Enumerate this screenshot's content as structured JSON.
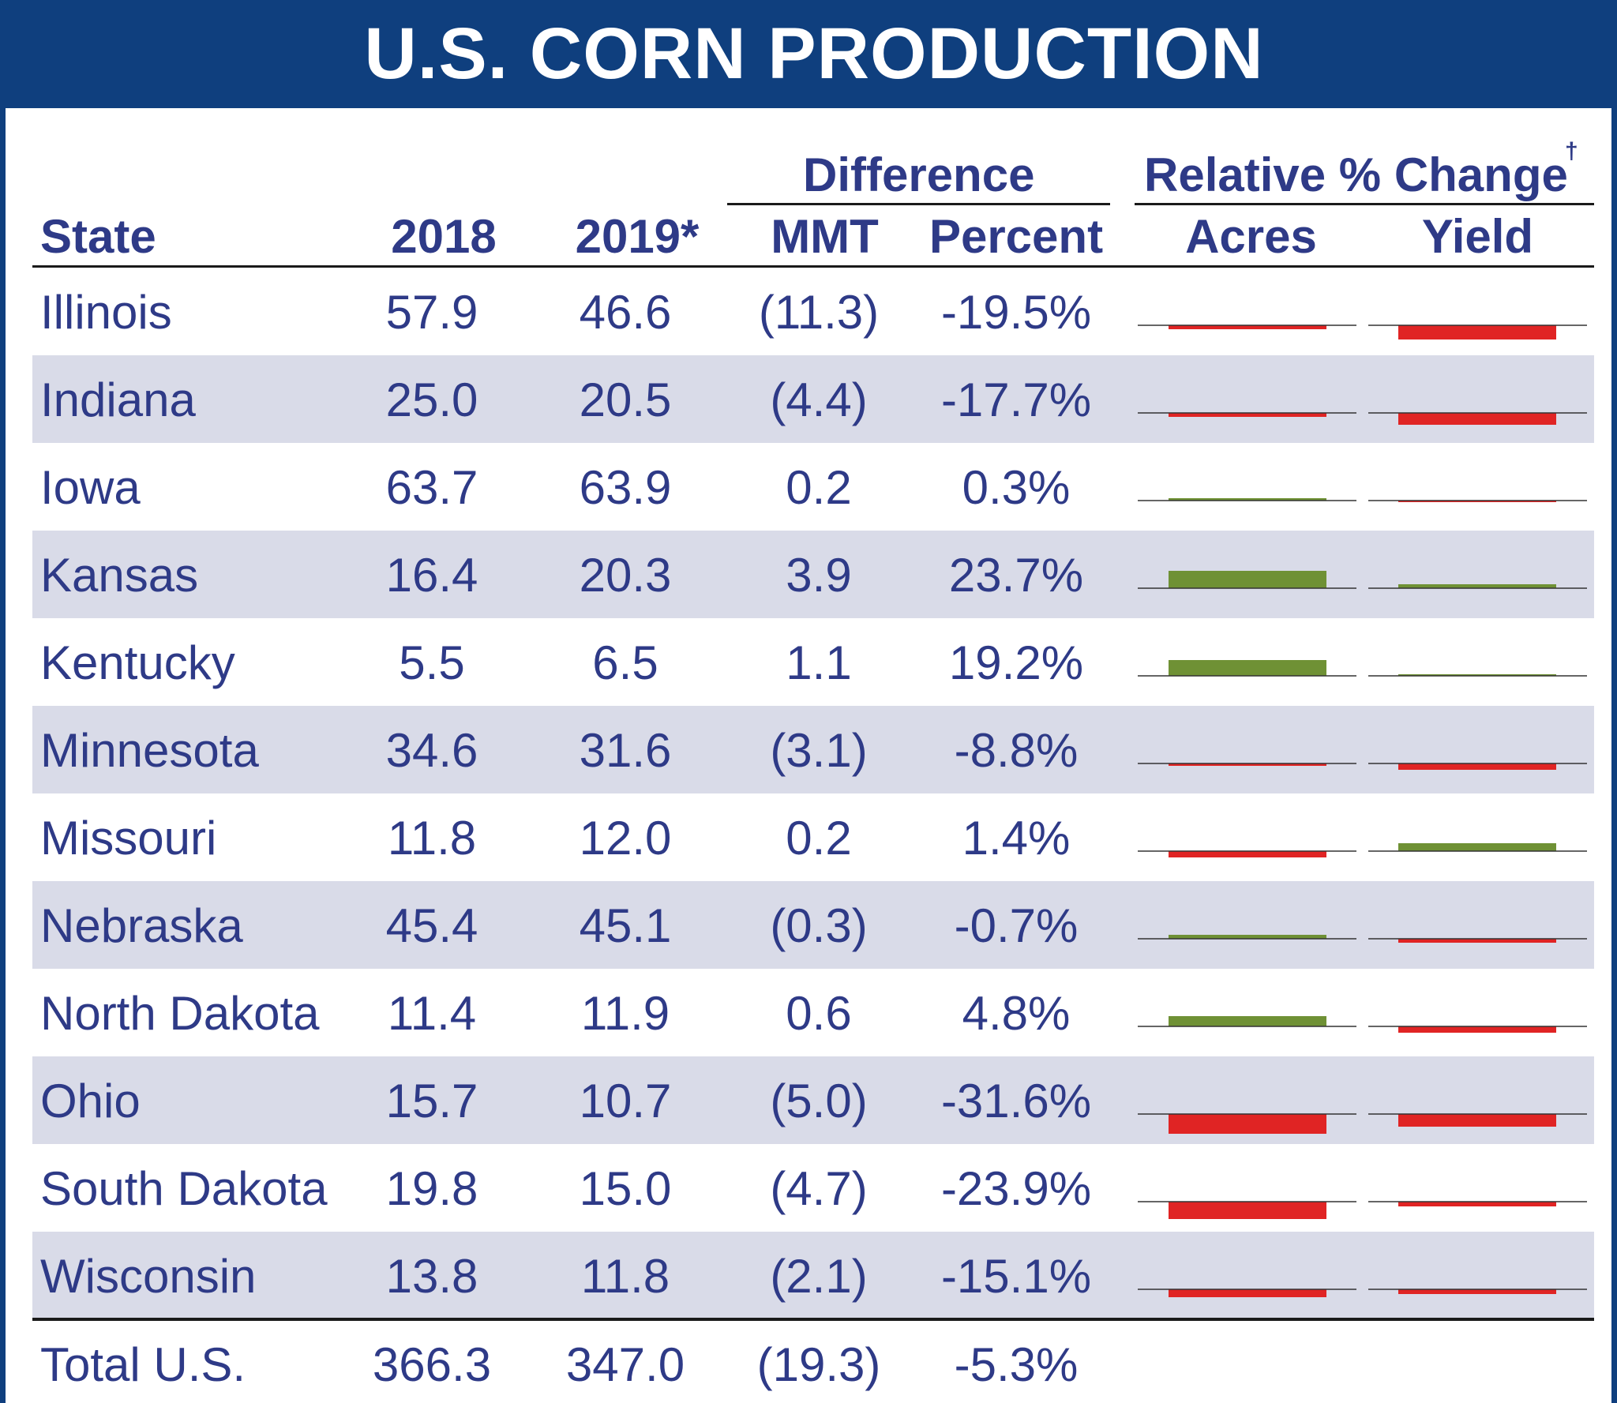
{
  "title": "U.S. CORN PRODUCTION",
  "headers": {
    "state": "State",
    "y2018": "2018",
    "y2019": "2019*",
    "difference": "Difference",
    "mmt": "MMT",
    "percent": "Percent",
    "relative_change": "Relative % Change",
    "dagger": "†",
    "acres": "Acres",
    "yield": "Yield"
  },
  "colors": {
    "banner": "#0f3f7e",
    "text": "#2e3a87",
    "row_stripe": "#d9dbe8",
    "positive": "#6f9135",
    "negative": "#e02424"
  },
  "rows": [
    {
      "state": "Illinois",
      "y2018": "57.9",
      "y2019": "46.6",
      "mmt": "(11.3)",
      "percent": "-19.5%"
    },
    {
      "state": "Indiana",
      "y2018": "25.0",
      "y2019": "20.5",
      "mmt": "(4.4)",
      "percent": "-17.7%"
    },
    {
      "state": "Iowa",
      "y2018": "63.7",
      "y2019": "63.9",
      "mmt": "0.2",
      "percent": "0.3%"
    },
    {
      "state": "Kansas",
      "y2018": "16.4",
      "y2019": "20.3",
      "mmt": "3.9",
      "percent": "23.7%"
    },
    {
      "state": "Kentucky",
      "y2018": "5.5",
      "y2019": "6.5",
      "mmt": "1.1",
      "percent": "19.2%"
    },
    {
      "state": "Minnesota",
      "y2018": "34.6",
      "y2019": "31.6",
      "mmt": "(3.1)",
      "percent": "-8.8%"
    },
    {
      "state": "Missouri",
      "y2018": "11.8",
      "y2019": "12.0",
      "mmt": "0.2",
      "percent": "1.4%"
    },
    {
      "state": "Nebraska",
      "y2018": "45.4",
      "y2019": "45.1",
      "mmt": "(0.3)",
      "percent": "-0.7%"
    },
    {
      "state": "North Dakota",
      "y2018": "11.4",
      "y2019": "11.9",
      "mmt": "0.6",
      "percent": "4.8%"
    },
    {
      "state": "Ohio",
      "y2018": "15.7",
      "y2019": "10.7",
      "mmt": "(5.0)",
      "percent": "-31.6%"
    },
    {
      "state": "South Dakota",
      "y2018": "19.8",
      "y2019": "15.0",
      "mmt": "(4.7)",
      "percent": "-23.9%"
    },
    {
      "state": "Wisconsin",
      "y2018": "13.8",
      "y2019": "11.8",
      "mmt": "(2.1)",
      "percent": "-15.1%"
    }
  ],
  "total": {
    "state": "Total U.S.",
    "y2018": "366.3",
    "y2019": "347.0",
    "mmt": "(19.3)",
    "percent": "-5.3%"
  },
  "chart_data": {
    "type": "bar",
    "categories": [
      "Illinois",
      "Indiana",
      "Iowa",
      "Kansas",
      "Kentucky",
      "Minnesota",
      "Missouri",
      "Nebraska",
      "North Dakota",
      "Ohio",
      "South Dakota",
      "Wisconsin"
    ],
    "series": [
      {
        "name": "Acres",
        "values": [
          -0.5,
          -0.5,
          0.3,
          2.2,
          2.0,
          -0.3,
          -0.8,
          0.5,
          1.3,
          -2.5,
          -2.2,
          -1.0
        ]
      },
      {
        "name": "Yield",
        "values": [
          -1.8,
          -1.5,
          -0.2,
          0.5,
          0.1,
          -0.8,
          1.0,
          -0.5,
          -0.8,
          -1.6,
          -0.6,
          -0.6
        ]
      }
    ]
  }
}
